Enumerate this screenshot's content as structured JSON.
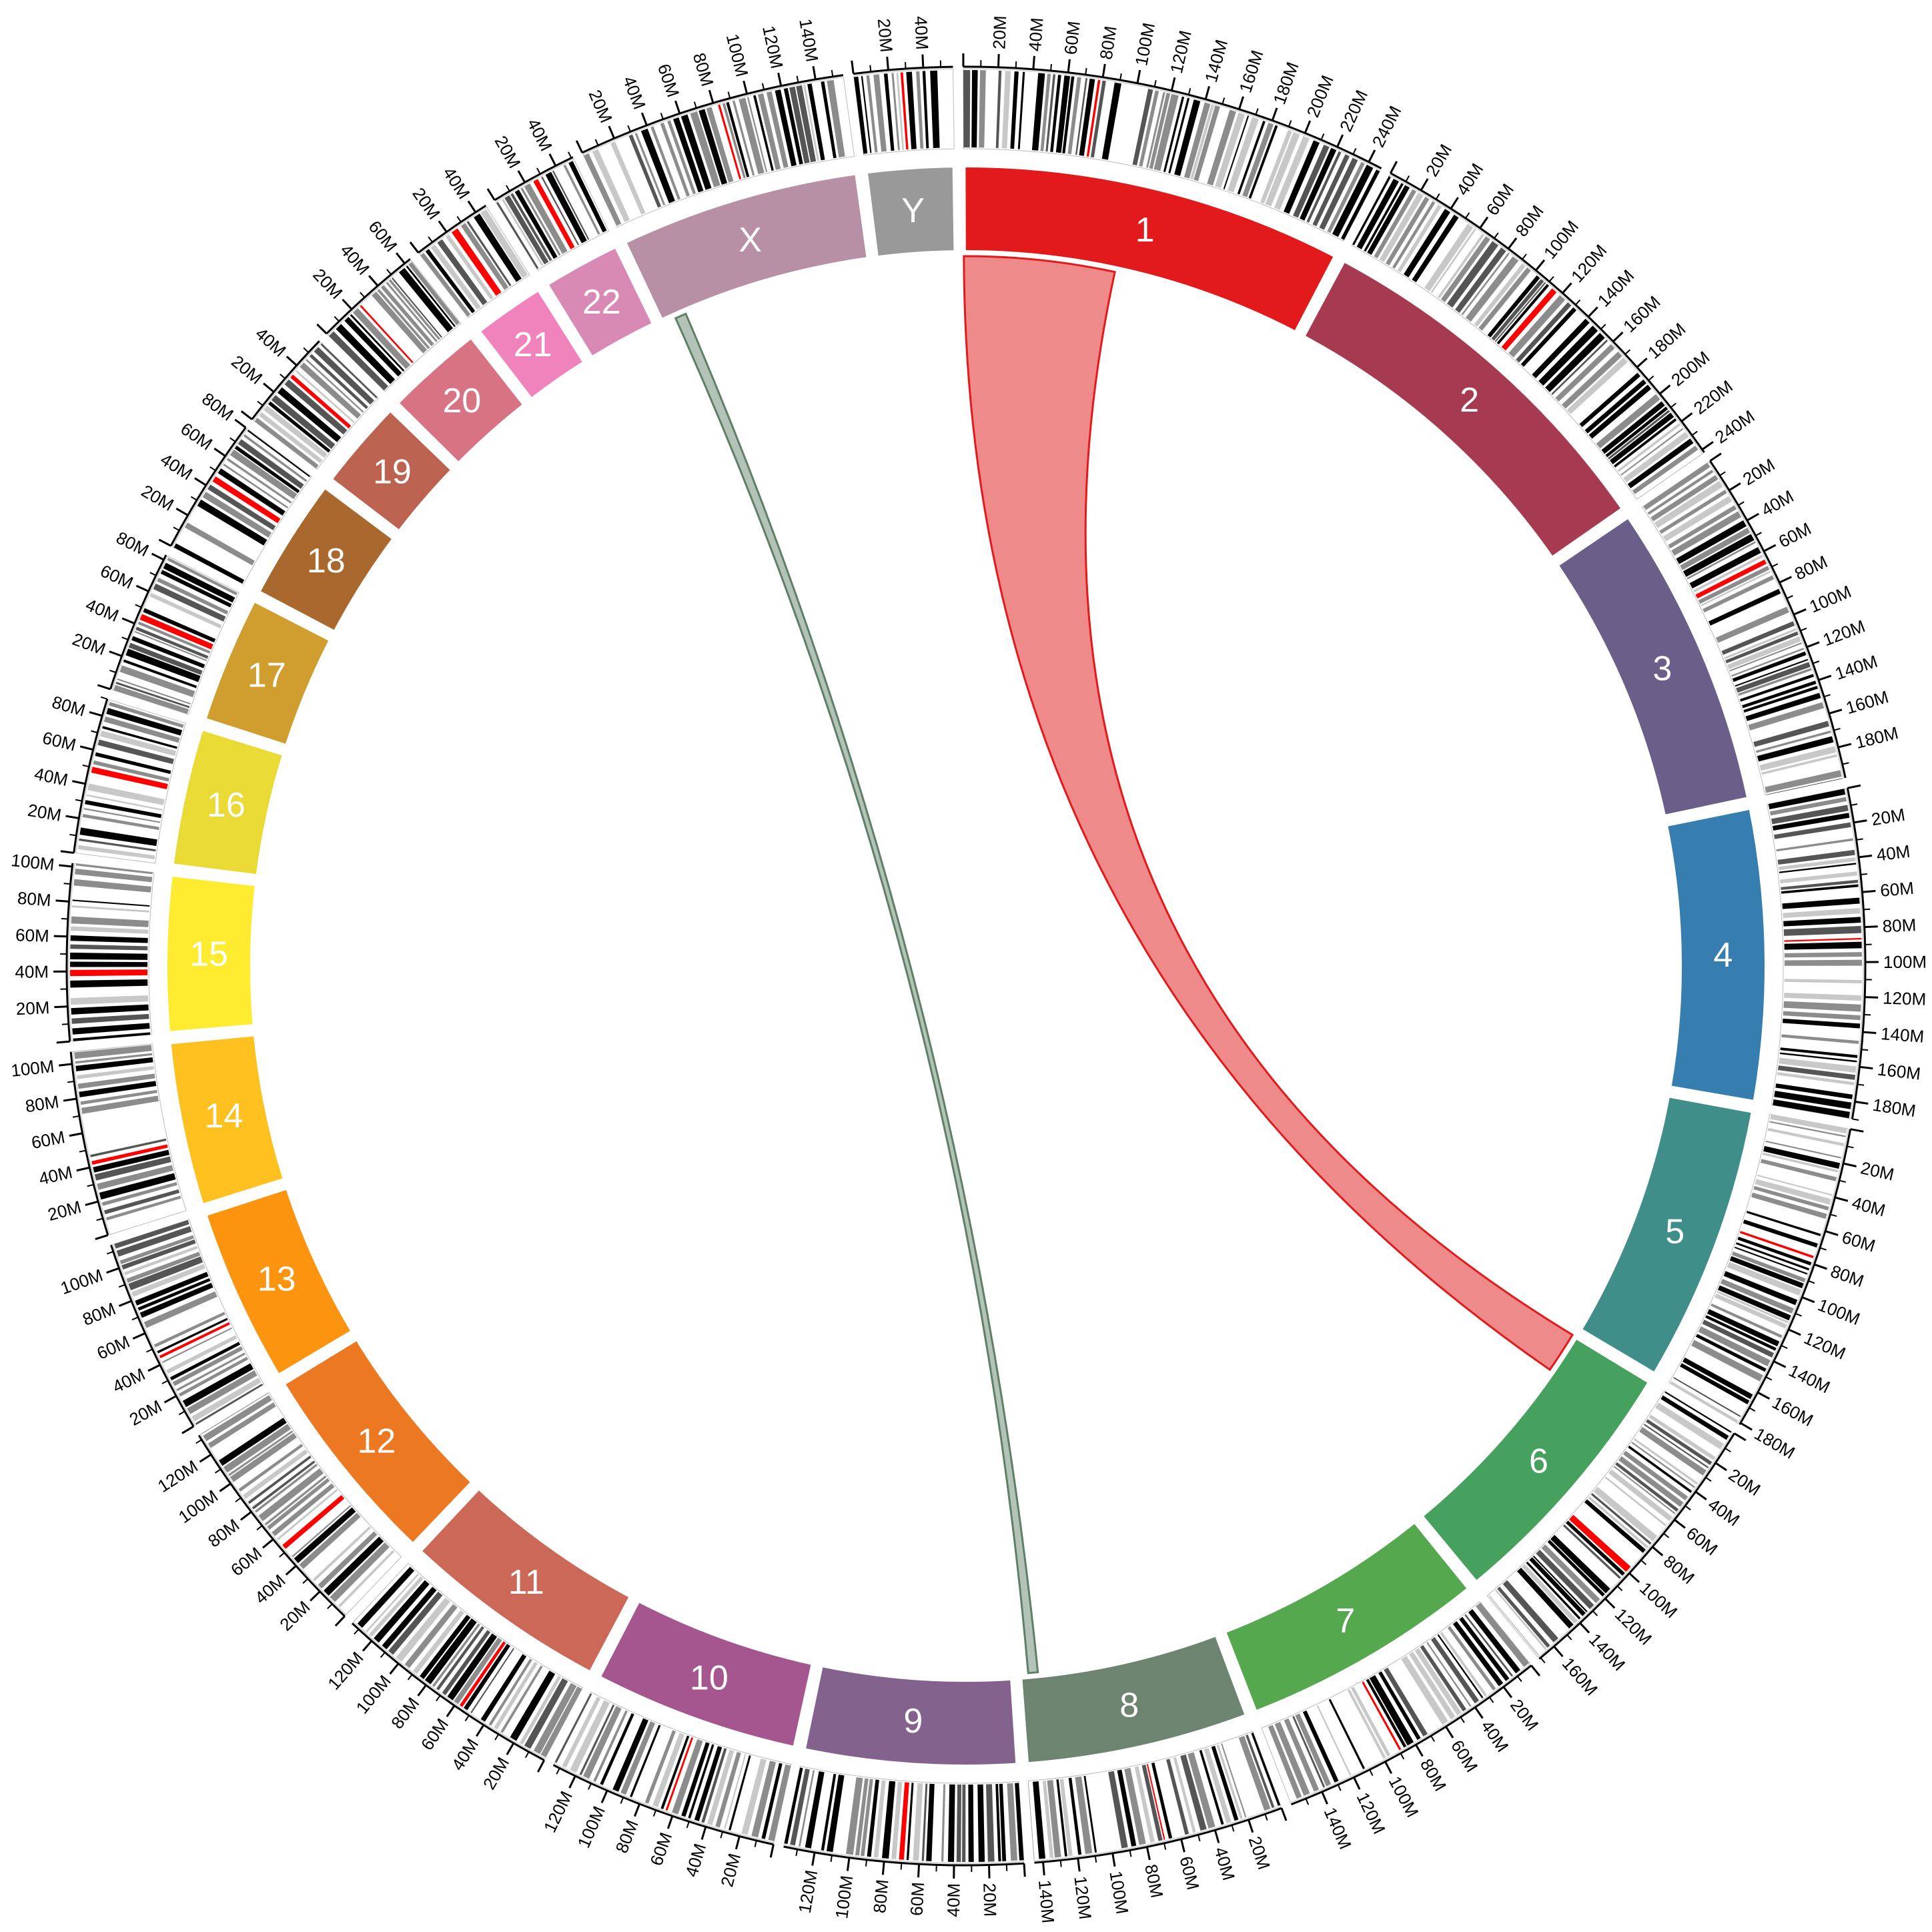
{
  "chart_data": {
    "type": "circos",
    "chromosomes": [
      {
        "name": "1",
        "length_mb": 248,
        "color": "#e31a1c",
        "tick_labels": [
          "20M",
          "40M",
          "60M",
          "80M",
          "100M",
          "120M",
          "140M",
          "160M",
          "180M",
          "200M",
          "220M",
          "240M"
        ]
      },
      {
        "name": "2",
        "length_mb": 242,
        "color": "#a63a50",
        "tick_labels": [
          "20M",
          "40M",
          "60M",
          "80M",
          "100M",
          "120M",
          "140M",
          "160M",
          "180M",
          "200M",
          "220M",
          "240M"
        ]
      },
      {
        "name": "3",
        "length_mb": 198,
        "color": "#6a5f88",
        "tick_labels": [
          "20M",
          "40M",
          "60M",
          "80M",
          "100M",
          "120M",
          "140M",
          "160M",
          "180M"
        ]
      },
      {
        "name": "4",
        "length_mb": 190,
        "color": "#377eb0",
        "tick_labels": [
          "20M",
          "40M",
          "60M",
          "80M",
          "100M",
          "120M",
          "140M",
          "160M",
          "180M"
        ]
      },
      {
        "name": "5",
        "length_mb": 181,
        "color": "#3f8e8a",
        "tick_labels": [
          "20M",
          "40M",
          "60M",
          "80M",
          "100M",
          "120M",
          "140M",
          "160M",
          "180M"
        ]
      },
      {
        "name": "6",
        "length_mb": 171,
        "color": "#46a05e",
        "tick_labels": [
          "20M",
          "40M",
          "60M",
          "80M",
          "100M",
          "120M",
          "140M",
          "160M"
        ]
      },
      {
        "name": "7",
        "length_mb": 159,
        "color": "#56a84f",
        "tick_labels": [
          "20M",
          "40M",
          "60M",
          "80M",
          "100M",
          "120M",
          "140M"
        ]
      },
      {
        "name": "8",
        "length_mb": 145,
        "color": "#6d8570",
        "tick_labels": [
          "20M",
          "40M",
          "60M",
          "80M",
          "100M",
          "120M",
          "140M"
        ]
      },
      {
        "name": "9",
        "length_mb": 138,
        "color": "#83628e",
        "tick_labels": [
          "20M",
          "40M",
          "60M",
          "80M",
          "100M",
          "120M"
        ]
      },
      {
        "name": "10",
        "length_mb": 134,
        "color": "#a5568e",
        "tick_labels": [
          "20M",
          "40M",
          "60M",
          "80M",
          "100M",
          "120M"
        ]
      },
      {
        "name": "11",
        "length_mb": 135,
        "color": "#cc6857",
        "tick_labels": [
          "20M",
          "40M",
          "60M",
          "80M",
          "100M",
          "120M"
        ]
      },
      {
        "name": "12",
        "length_mb": 133,
        "color": "#ed7822",
        "tick_labels": [
          "20M",
          "40M",
          "60M",
          "80M",
          "100M",
          "120M"
        ]
      },
      {
        "name": "13",
        "length_mb": 114,
        "color": "#fd9410",
        "tick_labels": [
          "20M",
          "40M",
          "60M",
          "80M",
          "100M"
        ]
      },
      {
        "name": "14",
        "length_mb": 107,
        "color": "#fec11f",
        "tick_labels": [
          "20M",
          "40M",
          "60M",
          "80M",
          "100M"
        ]
      },
      {
        "name": "15",
        "length_mb": 102,
        "color": "#ffeb2f",
        "tick_labels": [
          "20M",
          "40M",
          "60M",
          "80M",
          "100M"
        ]
      },
      {
        "name": "16",
        "length_mb": 90,
        "color": "#eada35",
        "tick_labels": [
          "20M",
          "40M",
          "60M",
          "80M"
        ]
      },
      {
        "name": "17",
        "length_mb": 83,
        "color": "#cf9e2f",
        "tick_labels": [
          "20M",
          "40M",
          "60M",
          "80M"
        ]
      },
      {
        "name": "18",
        "length_mb": 80,
        "color": "#a8682e",
        "tick_labels": [
          "20M",
          "40M",
          "60M",
          "80M"
        ]
      },
      {
        "name": "19",
        "length_mb": 59,
        "color": "#bb6350",
        "tick_labels": [
          "20M",
          "40M"
        ]
      },
      {
        "name": "20",
        "length_mb": 64,
        "color": "#d87384",
        "tick_labels": [
          "20M",
          "40M",
          "60M"
        ]
      },
      {
        "name": "21",
        "length_mb": 47,
        "color": "#f083bc",
        "tick_labels": [
          "20M",
          "40M"
        ]
      },
      {
        "name": "22",
        "length_mb": 51,
        "color": "#d88ab5",
        "tick_labels": [
          "20M",
          "40M"
        ]
      },
      {
        "name": "X",
        "length_mb": 156,
        "color": "#b890a5",
        "tick_labels": [
          "20M",
          "40M",
          "60M",
          "80M",
          "100M",
          "120M",
          "140M"
        ]
      },
      {
        "name": "Y",
        "length_mb": 57,
        "color": "#999999",
        "tick_labels": [
          "20M",
          "40M"
        ]
      }
    ],
    "links": [
      {
        "source": "1",
        "source_range_mb": [
          0,
          110
        ],
        "target": "6",
        "target_range_mb": [
          0,
          30
        ],
        "fill": "#ef8a8a",
        "stroke": "#e31a1c"
      },
      {
        "source": "X",
        "source_range_mb": [
          10,
          18
        ],
        "target": "8",
        "target_range_mb": [
          132,
          139
        ],
        "fill": "#b4c3b8",
        "stroke": "#5f7f66"
      }
    ],
    "band_colors": {
      "gneg": "#ffffff",
      "gpos25": "#c8c8c8",
      "gpos50": "#8c8c8c",
      "gpos75": "#555555",
      "gpos100": "#000000",
      "acen": "#ff0000",
      "gvar": "#1ea7ff"
    },
    "band_seed": 7
  }
}
